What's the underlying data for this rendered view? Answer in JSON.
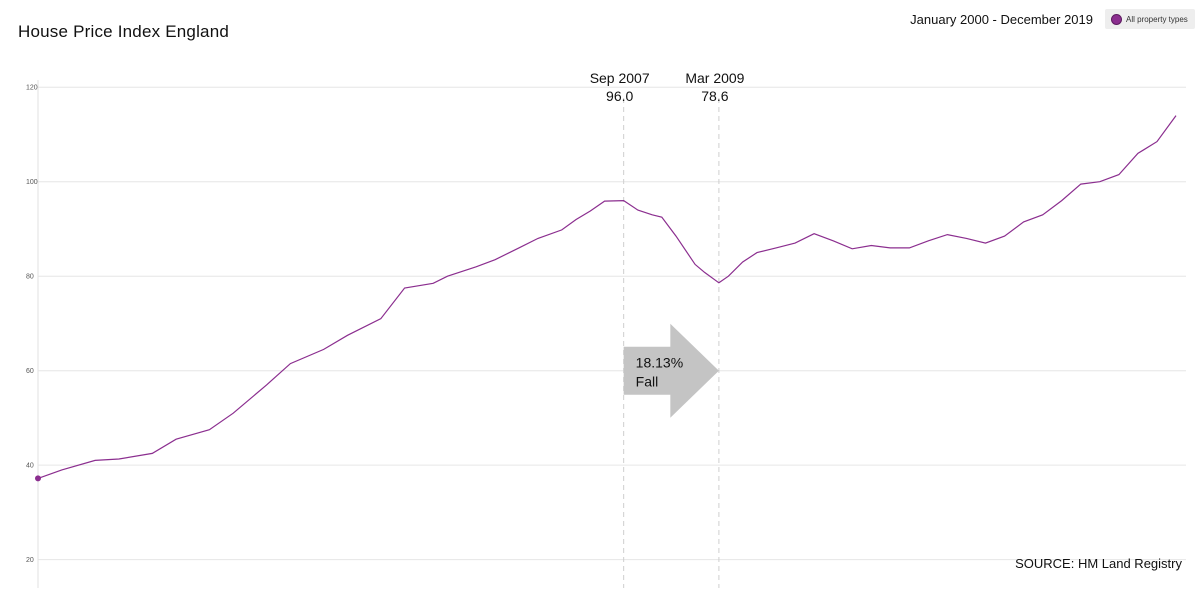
{
  "header": {
    "title": "House Price Index England",
    "date_range": "January 2000 - December 2019"
  },
  "legend": {
    "label": "All property types",
    "color": "#8b2e8f"
  },
  "source": "SOURCE: HM Land Registry",
  "chart_data": {
    "type": "line",
    "title": "House Price Index England",
    "xlabel": "",
    "ylabel": "",
    "x_range": [
      "2000-01",
      "2019-12"
    ],
    "ylim": [
      14,
      130
    ],
    "yticks": [
      20,
      40,
      60,
      80,
      100,
      120
    ],
    "grid": true,
    "legend_position": "top-right",
    "series": [
      {
        "name": "All property types",
        "color": "#8b2e8f",
        "points": [
          [
            "2000-01",
            37.2
          ],
          [
            "2000-06",
            39.0
          ],
          [
            "2001-01",
            41.0
          ],
          [
            "2001-06",
            41.3
          ],
          [
            "2002-01",
            42.5
          ],
          [
            "2002-06",
            45.5
          ],
          [
            "2003-01",
            47.5
          ],
          [
            "2003-06",
            51.0
          ],
          [
            "2004-01",
            57.0
          ],
          [
            "2004-06",
            61.5
          ],
          [
            "2005-01",
            64.5
          ],
          [
            "2005-06",
            67.5
          ],
          [
            "2006-01",
            71.0
          ],
          [
            "2006-06",
            77.5
          ],
          [
            "2006-12",
            78.5
          ],
          [
            "2007-03",
            80.0
          ],
          [
            "2007-09",
            82.0
          ],
          [
            "2008-01",
            83.5
          ],
          [
            "2008-06",
            86.0
          ],
          [
            "2008-10",
            88.0
          ],
          [
            "2009-03",
            89.8
          ],
          [
            "2009-06",
            92.0
          ],
          [
            "2009-09",
            93.8
          ],
          [
            "2009-12",
            95.9
          ],
          [
            "2010-04",
            96.0
          ],
          [
            "2010-07",
            94.0
          ],
          [
            "2010-10",
            93.0
          ],
          [
            "2010-12",
            92.5
          ],
          [
            "2011-03",
            88.5
          ],
          [
            "2011-07",
            82.5
          ],
          [
            "2011-09",
            80.8
          ],
          [
            "2011-12",
            78.6
          ],
          [
            "2012-02",
            80.0
          ],
          [
            "2012-05",
            83.0
          ],
          [
            "2012-08",
            85.0
          ],
          [
            "2012-12",
            86.0
          ],
          [
            "2013-04",
            87.0
          ],
          [
            "2013-08",
            89.0
          ],
          [
            "2013-12",
            87.5
          ],
          [
            "2014-04",
            85.8
          ],
          [
            "2014-08",
            86.5
          ],
          [
            "2014-12",
            86.0
          ],
          [
            "2015-04",
            86.0
          ],
          [
            "2015-08",
            87.5
          ],
          [
            "2015-12",
            88.8
          ],
          [
            "2016-04",
            88.0
          ],
          [
            "2016-08",
            87.0
          ],
          [
            "2016-12",
            88.5
          ],
          [
            "2017-04",
            91.5
          ],
          [
            "2017-08",
            93.0
          ],
          [
            "2017-12",
            96.0
          ],
          [
            "2018-04",
            99.5
          ],
          [
            "2018-08",
            100.0
          ],
          [
            "2018-12",
            101.5
          ],
          [
            "2019-04",
            106.0
          ],
          [
            "2019-08",
            108.5
          ],
          [
            "2019-12",
            114.0
          ]
        ]
      }
    ],
    "annotations": [
      {
        "label": "Sep 2007",
        "value": "96.0",
        "x": "2010-04"
      },
      {
        "label": "Mar 2009",
        "value": "78.6",
        "x": "2011-12"
      }
    ],
    "callout": {
      "line1": "18.13%",
      "line2": "Fall"
    }
  }
}
